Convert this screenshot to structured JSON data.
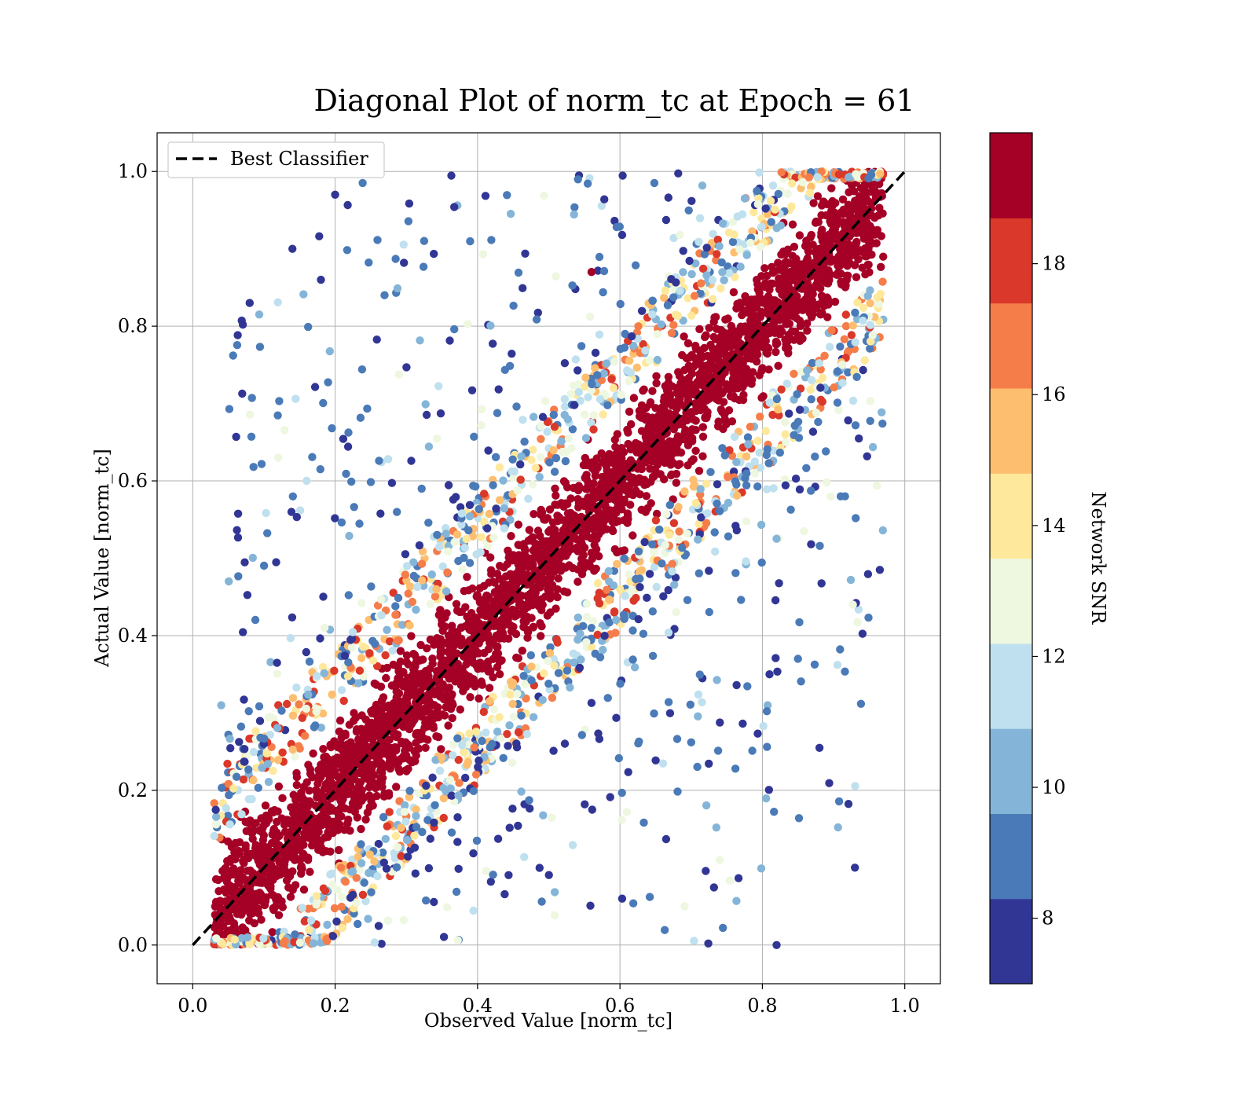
{
  "chart_data": {
    "type": "scatter",
    "title": "Diagonal Plot of norm_tc at Epoch = 61",
    "xlabel": "Observed Value [norm_tc]",
    "ylabel": "Actual Value [norm_tc]",
    "xlim": [
      -0.05,
      1.05
    ],
    "ylim": [
      -0.05,
      1.05
    ],
    "xticks": [
      "0.0",
      "0.2",
      "0.4",
      "0.6",
      "0.8",
      "1.0"
    ],
    "yticks": [
      "0.0",
      "0.2",
      "0.4",
      "0.6",
      "0.8",
      "1.0"
    ],
    "xtick_values": [
      0,
      0.2,
      0.4,
      0.6,
      0.8,
      1.0
    ],
    "ytick_values": [
      0,
      0.2,
      0.4,
      0.6,
      0.8,
      1.0
    ],
    "grid": true,
    "legend": {
      "position": "top-left",
      "entries": [
        "Best Classifier"
      ]
    },
    "reference_line": {
      "name": "Best Classifier",
      "x": [
        0,
        1
      ],
      "y": [
        0,
        1
      ],
      "style": "dashed",
      "color": "#000000"
    },
    "colorbar": {
      "label": "Network SNR",
      "range": [
        7,
        20
      ],
      "tick_labels": [
        "8",
        "10",
        "12",
        "14",
        "16",
        "18"
      ],
      "tick_values": [
        8,
        10,
        12,
        14,
        16,
        18
      ],
      "bins": [
        {
          "from": 7,
          "to": 8.3,
          "color": "#313695"
        },
        {
          "from": 8.3,
          "to": 9.6,
          "color": "#4a7ab7"
        },
        {
          "from": 9.6,
          "to": 10.9,
          "color": "#84b5d8"
        },
        {
          "from": 10.9,
          "to": 12.2,
          "color": "#bfe0ee"
        },
        {
          "from": 12.2,
          "to": 13.5,
          "color": "#eef7df"
        },
        {
          "from": 13.5,
          "to": 14.8,
          "color": "#fee89b"
        },
        {
          "from": 14.8,
          "to": 16.1,
          "color": "#fdbe70"
        },
        {
          "from": 16.1,
          "to": 17.4,
          "color": "#f57d4a"
        },
        {
          "from": 17.4,
          "to": 18.7,
          "color": "#da382a"
        },
        {
          "from": 18.7,
          "to": 20,
          "color": "#a50026"
        }
      ]
    },
    "series": [
      {
        "name": "Network SNR (color-coded samples)",
        "description_of_distribution": "dense band along the diagonal, high SNR core, low SNR outliers",
        "sample_points": [
          {
            "x": 0.08,
            "y": 0.83,
            "snr": 8
          },
          {
            "x": 0.14,
            "y": 0.9,
            "snr": 8
          },
          {
            "x": 0.18,
            "y": 0.86,
            "snr": 8
          },
          {
            "x": 0.2,
            "y": 0.97,
            "snr": 8
          },
          {
            "x": 0.12,
            "y": 0.63,
            "snr": 12.5
          },
          {
            "x": 0.16,
            "y": 0.6,
            "snr": 11.5
          },
          {
            "x": 0.04,
            "y": 0.31,
            "snr": 10
          },
          {
            "x": 0.85,
            "y": 0.37,
            "snr": 9
          },
          {
            "x": 0.93,
            "y": 0.1,
            "snr": 8
          },
          {
            "x": 0.91,
            "y": 0.58,
            "snr": 9
          },
          {
            "x": 0.81,
            "y": 0.35,
            "snr": 8
          },
          {
            "x": 0.82,
            "y": 0.0,
            "snr": 8
          },
          {
            "x": 0.56,
            "y": 0.87,
            "snr": 19
          },
          {
            "x": 0.74,
            "y": 0.11,
            "snr": 13
          }
        ]
      }
    ]
  }
}
